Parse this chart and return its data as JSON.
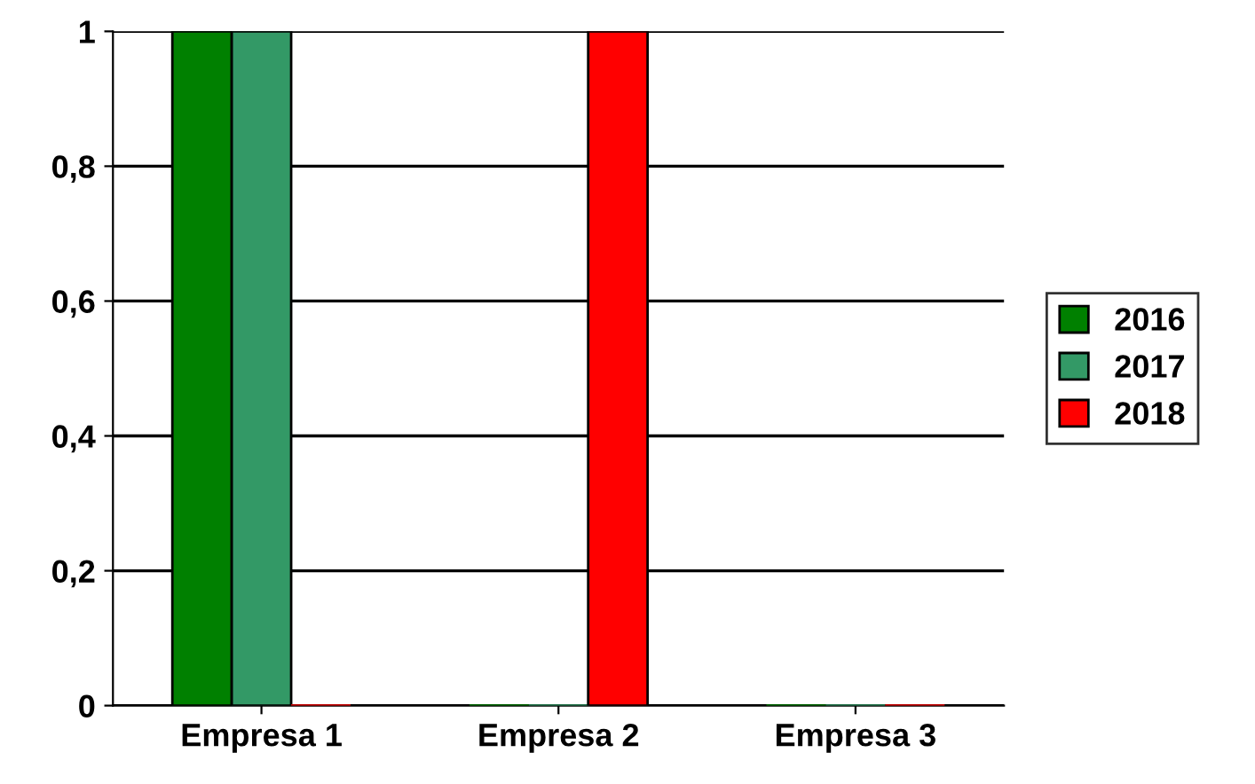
{
  "chart_data": {
    "type": "bar",
    "categories": [
      "Empresa 1",
      "Empresa 2",
      "Empresa 3"
    ],
    "series": [
      {
        "name": "2016",
        "color": "#008000",
        "values": [
          1,
          0,
          0
        ]
      },
      {
        "name": "2017",
        "color": "#339966",
        "values": [
          1,
          0,
          0
        ]
      },
      {
        "name": "2018",
        "color": "#ff0000",
        "values": [
          0,
          1,
          0
        ]
      }
    ],
    "ylim": [
      0,
      1
    ],
    "yticks": [
      0,
      {
        "value": 0.2,
        "label": "0,2"
      },
      {
        "value": 0.4,
        "label": "0,4"
      },
      {
        "value": 0.6,
        "label": "0,6"
      },
      {
        "value": 0.8,
        "label": "0,8"
      },
      1
    ],
    "grid": "y",
    "legend": "right"
  }
}
